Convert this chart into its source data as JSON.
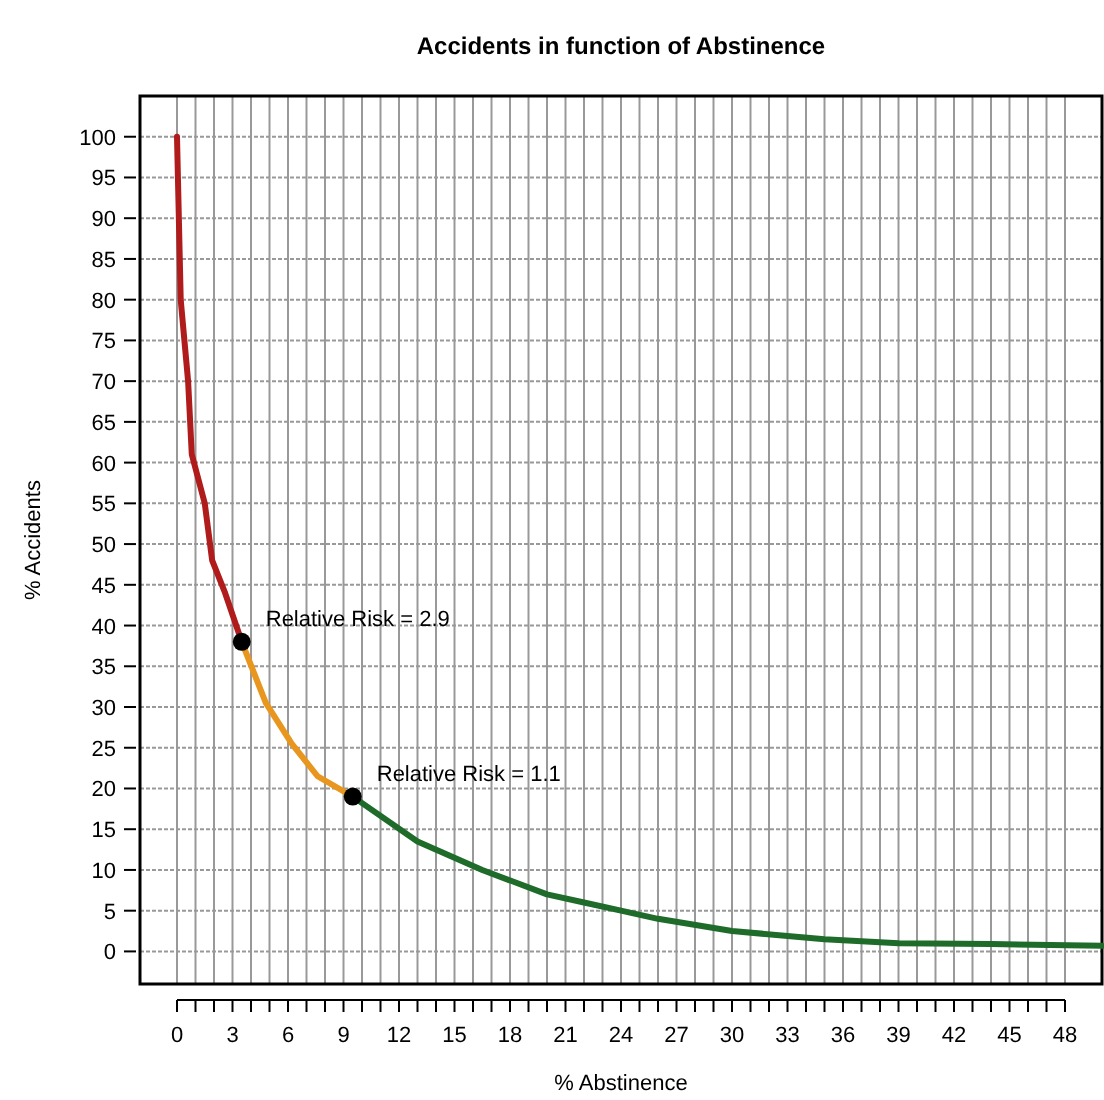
{
  "chart_data": {
    "type": "line",
    "title": "Accidents in function of Abstinence",
    "xlabel": "% Abstinence",
    "ylabel": "% Accidents",
    "xlim": [
      -2,
      50
    ],
    "ylim": [
      -4,
      105
    ],
    "xticks": [
      0,
      {
        "value": 1,
        "label": null
      },
      {
        "value": 2,
        "label": null
      },
      3,
      {
        "value": 4,
        "label": null
      },
      {
        "value": 5,
        "label": null
      },
      6,
      {
        "value": 7,
        "label": null
      },
      {
        "value": 8,
        "label": null
      },
      9,
      {
        "value": 10,
        "label": null
      },
      {
        "value": 11,
        "label": null
      },
      12,
      {
        "value": 13,
        "label": null
      },
      {
        "value": 14,
        "label": null
      },
      15,
      {
        "value": 16,
        "label": null
      },
      {
        "value": 17,
        "label": null
      },
      18,
      {
        "value": 19,
        "label": null
      },
      {
        "value": 20,
        "label": null
      },
      21,
      {
        "value": 22,
        "label": null
      },
      {
        "value": 23,
        "label": null
      },
      24,
      {
        "value": 25,
        "label": null
      },
      {
        "value": 26,
        "label": null
      },
      27,
      {
        "value": 28,
        "label": null
      },
      {
        "value": 29,
        "label": null
      },
      30,
      {
        "value": 31,
        "label": null
      },
      {
        "value": 32,
        "label": null
      },
      33,
      {
        "value": 34,
        "label": null
      },
      {
        "value": 35,
        "label": null
      },
      36,
      {
        "value": 37,
        "label": null
      },
      {
        "value": 38,
        "label": null
      },
      39,
      {
        "value": 40,
        "label": null
      },
      {
        "value": 41,
        "label": null
      },
      42,
      {
        "value": 43,
        "label": null
      },
      {
        "value": 44,
        "label": null
      },
      45,
      {
        "value": 46,
        "label": null
      },
      {
        "value": 47,
        "label": null
      },
      48
    ],
    "yticks": [
      0,
      5,
      10,
      15,
      20,
      25,
      30,
      35,
      40,
      45,
      50,
      55,
      60,
      65,
      70,
      75,
      80,
      85,
      90,
      95,
      100
    ],
    "grid": true,
    "marker": "none",
    "line_style": "solid",
    "series": [
      {
        "color": "#b01c1c",
        "x": [
          0,
          0.2,
          0.6,
          0.8,
          1.5,
          1.9,
          2.6,
          3.5
        ],
        "values": [
          100,
          80,
          70,
          61,
          55,
          48,
          44,
          38
        ]
      },
      {
        "color": "#e8961e",
        "x": [
          3.5,
          4.8,
          6.2,
          7.6,
          9.5
        ],
        "values": [
          38,
          30.5,
          25.5,
          21.5,
          19
        ]
      },
      {
        "color": "#1e6b2a",
        "x": [
          9.5,
          13,
          16.5,
          20,
          22,
          24,
          26,
          30,
          35,
          39,
          44,
          50
        ],
        "values": [
          19,
          13.5,
          10,
          7,
          6,
          5,
          4,
          2.5,
          1.5,
          1,
          0.9,
          0.7
        ]
      },
      {
        "type": "scatter",
        "marker": "circle",
        "color": "#000000",
        "x": [
          3.5,
          9.5
        ],
        "values": [
          38,
          19
        ]
      }
    ],
    "annotations": [
      {
        "text": "Relative Risk = 2.9",
        "x": 3.5,
        "y": 38
      },
      {
        "text": "Relative Risk = 1.1",
        "x": 9.5,
        "y": 19
      }
    ]
  }
}
